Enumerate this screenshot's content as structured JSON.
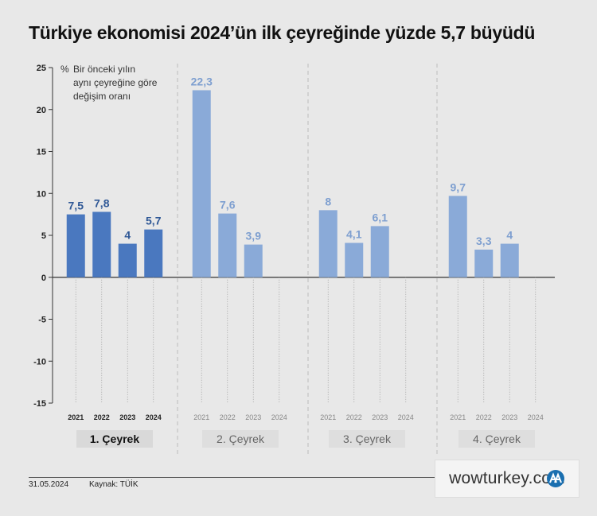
{
  "title": "Türkiye ekonomisi 2024’ün ilk çeyreğinde yüzde 5,7 büyüdü",
  "footer": {
    "date": "31.05.2024",
    "source": "Kaynak: TÜİK"
  },
  "watermark": "wowturkey.com",
  "colors": {
    "q1": "#4a78bf",
    "other": "#8aaad8",
    "label_q1": "#2f5896",
    "label_other": "#7e9fd0"
  },
  "chart_data": {
    "type": "bar",
    "ylabel_unit": "%",
    "ylabel_lines": [
      "Bir önceki yılın",
      "aynı çeyreğine göre",
      "değişim oranı"
    ],
    "ylim": [
      -15,
      25
    ],
    "yticks": [
      "25",
      "20",
      "15",
      "10",
      "5",
      "0",
      "-5",
      "-10",
      "-15"
    ],
    "ytick_values": [
      25,
      20,
      15,
      10,
      5,
      0,
      -5,
      -10,
      -15
    ],
    "years": [
      "2021",
      "2022",
      "2023",
      "2024"
    ],
    "groups": [
      {
        "name": "1. Çeyrek",
        "values": [
          7.5,
          7.8,
          4,
          5.7
        ],
        "labels": [
          "7,5",
          "7,8",
          "4",
          "5,7"
        ],
        "highlight": true
      },
      {
        "name": "2. Çeyrek",
        "values": [
          22.3,
          7.6,
          3.9,
          null
        ],
        "labels": [
          "22,3",
          "7,6",
          "3,9",
          ""
        ],
        "highlight": false
      },
      {
        "name": "3. Çeyrek",
        "values": [
          8,
          4.1,
          6.1,
          null
        ],
        "labels": [
          "8",
          "4,1",
          "6,1",
          ""
        ],
        "highlight": false
      },
      {
        "name": "4. Çeyrek",
        "values": [
          9.7,
          3.3,
          4,
          null
        ],
        "labels": [
          "9,7",
          "3,3",
          "4",
          ""
        ],
        "highlight": false
      }
    ]
  }
}
